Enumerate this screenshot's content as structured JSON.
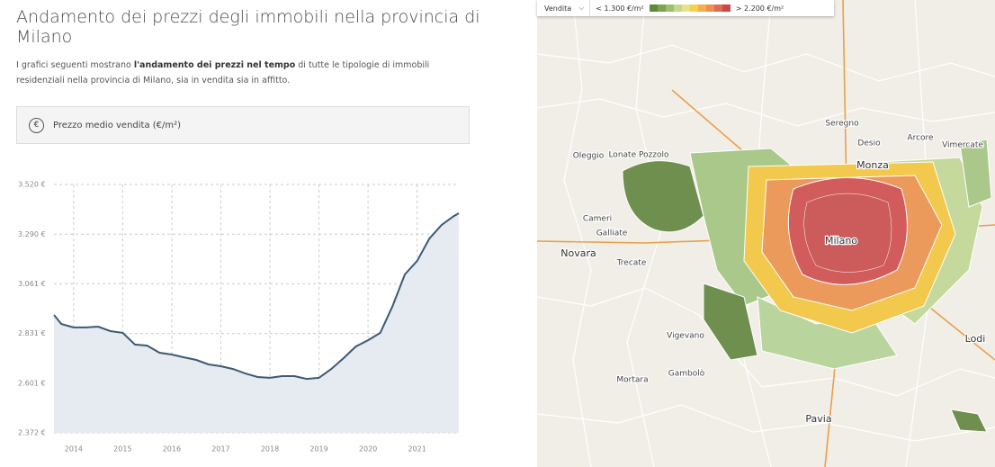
{
  "header": {
    "title": "Andamento dei prezzi degli immobili nella provincia di Milano",
    "intro": [
      "I grafici seguenti mostrano ",
      "l'andamento dei prezzi nel tempo",
      " di tutte le tipologie di immobili residenziali nella provincia di Milano, sia in vendita sia in affitto."
    ]
  },
  "selector": {
    "icon": "€",
    "label": "Prezzo medio vendita (€/m²)"
  },
  "chart_data": {
    "type": "area",
    "color": "#3d5a73",
    "fill": "#e6ebf1",
    "grid": true,
    "x": [
      2013.6,
      2013.75,
      2014.0,
      2014.25,
      2014.5,
      2014.75,
      2015.0,
      2015.25,
      2015.5,
      2015.75,
      2016.0,
      2016.25,
      2016.5,
      2016.75,
      2017.0,
      2017.25,
      2017.5,
      2017.75,
      2018.0,
      2018.25,
      2018.5,
      2018.75,
      2019.0,
      2019.25,
      2019.5,
      2019.75,
      2020.0,
      2020.25,
      2020.5,
      2020.75,
      2021.0,
      2021.25,
      2021.5,
      2021.75,
      2021.85
    ],
    "values": [
      2917,
      2875,
      2859,
      2859,
      2863,
      2842,
      2834,
      2780,
      2775,
      2742,
      2734,
      2721,
      2709,
      2688,
      2680,
      2667,
      2646,
      2630,
      2626,
      2634,
      2634,
      2621,
      2626,
      2667,
      2717,
      2771,
      2800,
      2834,
      2958,
      3104,
      3166,
      3270,
      3333,
      3374,
      3387
    ],
    "xlim": [
      2013.6,
      2021.85
    ],
    "xticks": [
      2014,
      2015,
      2016,
      2017,
      2018,
      2019,
      2020,
      2021
    ],
    "ylim": [
      2372,
      3520
    ],
    "yticks": [
      {
        "value": 2372,
        "label": "2.372 €"
      },
      {
        "value": 2601,
        "label": "2.601 €"
      },
      {
        "value": 2831,
        "label": "2.831 €"
      },
      {
        "value": 3061,
        "label": "3.061 €"
      },
      {
        "value": 3290,
        "label": "3.290 €"
      },
      {
        "value": 3520,
        "label": "3.520 €"
      }
    ]
  },
  "map": {
    "mode": "Vendita",
    "legend_min": "< 1.300 €/m²",
    "legend_max": "> 2.200 €/m²",
    "places": [
      "Milano",
      "Monza",
      "Novara",
      "Lodi",
      "Pavia",
      "Vigevano",
      "Mortara",
      "Gambolò",
      "Oleggio",
      "Cameri",
      "Galliate",
      "Trecate",
      "Seregno",
      "Desio",
      "Arcore",
      "Vimercate",
      "Lonate Pozzolo"
    ]
  }
}
